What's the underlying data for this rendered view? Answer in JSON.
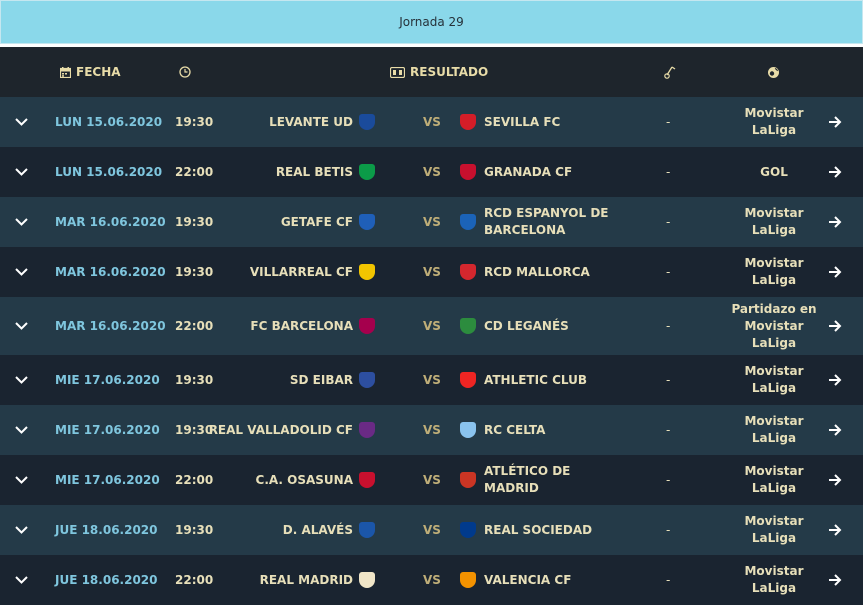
{
  "banner": {
    "title": "Jornada 29"
  },
  "header": {
    "fecha": "FECHA",
    "resultado": "RESULTADO"
  },
  "matches": [
    {
      "date": "LUN 15.06.2020",
      "time": "19:30",
      "home": "LEVANTE UD",
      "away": "SEVILLA FC",
      "vs": "VS",
      "result": "-",
      "tv": "Movistar LaLiga",
      "home_color": "#1a4b9b",
      "away_color": "#d41d28"
    },
    {
      "date": "LUN 15.06.2020",
      "time": "22:00",
      "home": "REAL BETIS",
      "away": "GRANADA CF",
      "vs": "VS",
      "result": "-",
      "tv": "GOL",
      "home_color": "#0b9b48",
      "away_color": "#c8102e"
    },
    {
      "date": "MAR 16.06.2020",
      "time": "19:30",
      "home": "GETAFE CF",
      "away": "RCD ESPANYOL DE BARCELONA",
      "vs": "VS",
      "result": "-",
      "tv": "Movistar LaLiga",
      "home_color": "#1f5fb8",
      "away_color": "#1b63b8"
    },
    {
      "date": "MAR 16.06.2020",
      "time": "19:30",
      "home": "VILLARREAL CF",
      "away": "RCD MALLORCA",
      "vs": "VS",
      "result": "-",
      "tv": "Movistar LaLiga",
      "home_color": "#f2c500",
      "away_color": "#d4272e"
    },
    {
      "date": "MAR 16.06.2020",
      "time": "22:00",
      "home": "FC BARCELONA",
      "away": "CD LEGANÉS",
      "vs": "VS",
      "result": "-",
      "tv": "Partidazo en Movistar LaLiga",
      "home_color": "#a5004d",
      "away_color": "#2c8c3e"
    },
    {
      "date": "MIE 17.06.2020",
      "time": "19:30",
      "home": "SD EIBAR",
      "away": "ATHLETIC CLUB",
      "vs": "VS",
      "result": "-",
      "tv": "Movistar LaLiga",
      "home_color": "#2d4fa0",
      "away_color": "#ee2523"
    },
    {
      "date": "MIE 17.06.2020",
      "time": "19:30",
      "home": "REAL VALLADOLID CF",
      "away": "RC CELTA",
      "vs": "VS",
      "result": "-",
      "tv": "Movistar LaLiga",
      "home_color": "#6a2a85",
      "away_color": "#8ac3ee"
    },
    {
      "date": "MIE 17.06.2020",
      "time": "22:00",
      "home": "C.A. OSASUNA",
      "away": "ATLÉTICO DE MADRID",
      "vs": "VS",
      "result": "-",
      "tv": "Movistar LaLiga",
      "home_color": "#c8102e",
      "away_color": "#cb3524"
    },
    {
      "date": "JUE 18.06.2020",
      "time": "19:30",
      "home": "D. ALAVÉS",
      "away": "REAL SOCIEDAD",
      "vs": "VS",
      "result": "-",
      "tv": "Movistar LaLiga",
      "home_color": "#1b56a9",
      "away_color": "#003a8c"
    },
    {
      "date": "JUE 18.06.2020",
      "time": "22:00",
      "home": "REAL MADRID",
      "away": "VALENCIA CF",
      "vs": "VS",
      "result": "-",
      "tv": "Movistar LaLiga",
      "home_color": "#f0e6c8",
      "away_color": "#f39200"
    }
  ]
}
